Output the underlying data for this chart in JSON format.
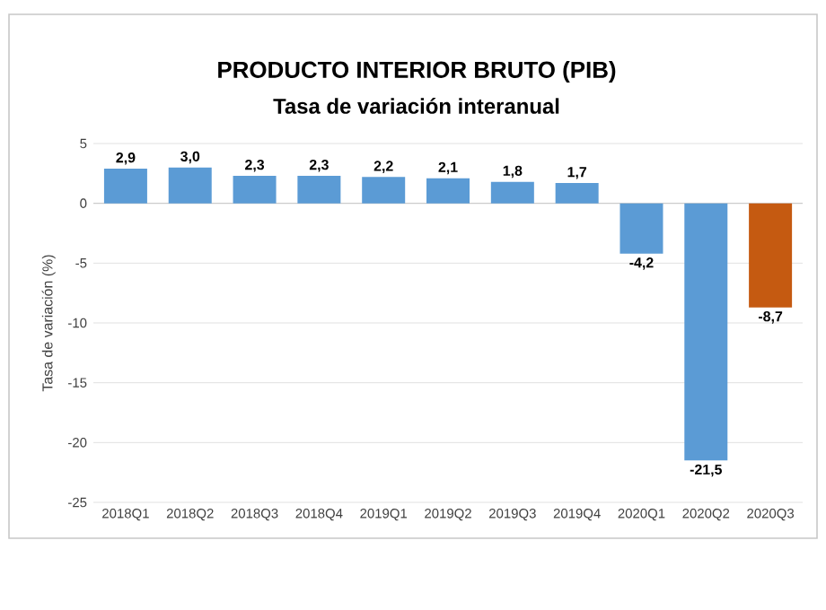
{
  "chart_data": {
    "type": "bar",
    "title": "PRODUCTO INTERIOR BRUTO (PIB)",
    "subtitle": "Tasa de variación interanual",
    "ylabel": "Tasa de variación (%)",
    "categories": [
      "2018Q1",
      "2018Q2",
      "2018Q3",
      "2018Q4",
      "2019Q1",
      "2019Q2",
      "2019Q3",
      "2019Q4",
      "2020Q1",
      "2020Q2",
      "2020Q3"
    ],
    "values": [
      2.9,
      3.0,
      2.3,
      2.3,
      2.2,
      2.1,
      1.8,
      1.7,
      -4.2,
      -21.5,
      -8.7
    ],
    "value_labels": [
      "2,9",
      "3,0",
      "2,3",
      "2,3",
      "2,2",
      "2,1",
      "1,8",
      "1,7",
      "-4,2",
      "-21,5",
      "-8,7"
    ],
    "colors": [
      "#5b9bd5",
      "#5b9bd5",
      "#5b9bd5",
      "#5b9bd5",
      "#5b9bd5",
      "#5b9bd5",
      "#5b9bd5",
      "#5b9bd5",
      "#5b9bd5",
      "#5b9bd5",
      "#c55a11"
    ],
    "ylim": [
      -25,
      5
    ],
    "yticks": [
      -25,
      -20,
      -15,
      -10,
      -5,
      0,
      5
    ],
    "grid": "y"
  }
}
